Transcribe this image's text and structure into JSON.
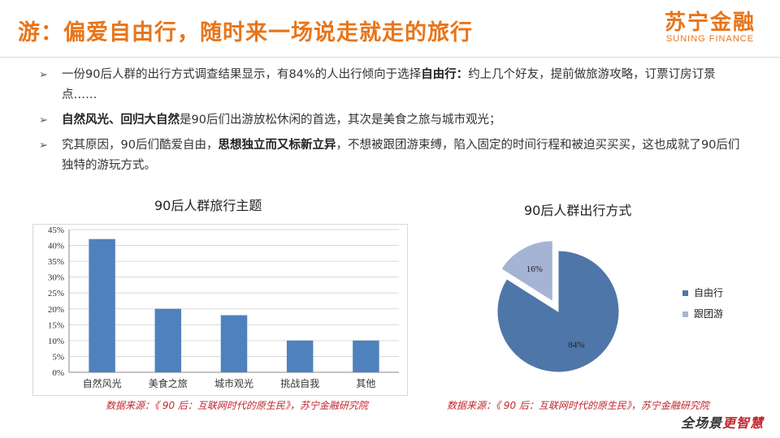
{
  "header": {
    "title": "游：偏爱自由行，随时来一场说走就走的旅行",
    "logo_cn": "苏宁金融",
    "logo_en": "SUNING FINANCE"
  },
  "bullets": [
    {
      "parts": [
        {
          "text": "一份90后人群的出行方式调查结果显示，有84%的人出行倾向于选择",
          "bold": false
        },
        {
          "text": "自由行：",
          "bold": true
        },
        {
          "text": "约上几个好友，提前做旅游攻略，订票订房订景点……",
          "bold": false
        }
      ]
    },
    {
      "parts": [
        {
          "text": "自然风光、回归大自然",
          "bold": true
        },
        {
          "text": "是90后们出游放松休闲的首选，其次是美食之旅与城市观光；",
          "bold": false
        }
      ]
    },
    {
      "parts": [
        {
          "text": "究其原因，90后们酷爱自由，",
          "bold": false
        },
        {
          "text": "思想独立而又标新立异",
          "bold": true
        },
        {
          "text": "，不想被跟团游束缚，陷入固定的时间行程和被迫买买买，这也成就了90后们独特的游玩方式。",
          "bold": false
        }
      ]
    }
  ],
  "bullet_arrow": "➢",
  "chart_data": [
    {
      "type": "bar",
      "title": "90后人群旅行主题",
      "categories": [
        "自然风光",
        "美食之旅",
        "城市观光",
        "挑战自我",
        "其他"
      ],
      "values": [
        42,
        20,
        18,
        10,
        10
      ],
      "ylim": [
        0,
        45
      ],
      "yticks": [
        "0%",
        "5%",
        "10%",
        "15%",
        "20%",
        "25%",
        "30%",
        "35%",
        "40%",
        "45%"
      ],
      "grid": true,
      "color": "#4f81bd"
    },
    {
      "type": "pie",
      "title": "90后人群出行方式",
      "labels": [
        "自由行",
        "跟团游"
      ],
      "values": [
        84,
        16
      ],
      "data_labels": [
        "84%",
        "16%"
      ],
      "colors": [
        "#4f76a8",
        "#a5b4d4"
      ],
      "legend": "right"
    }
  ],
  "sources": {
    "left": "数据来源：《 90 后：互联网时代的原生民》，苏宁金融研究院",
    "right": "数据来源：《 90 后：互联网时代的原生民》，苏宁金融研究院"
  },
  "footer_logo": {
    "main": "全场景",
    "accent": "更智慧"
  }
}
